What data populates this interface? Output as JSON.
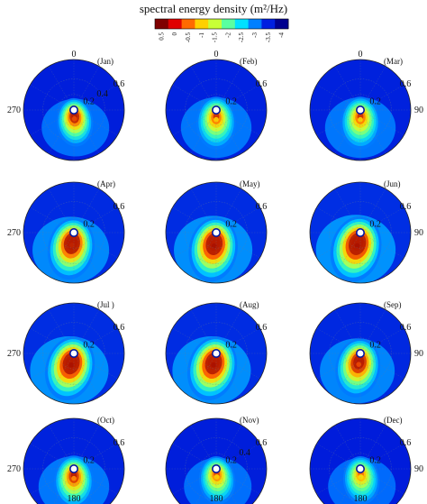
{
  "chart_data": {
    "type": "heatmap",
    "projection": "polar",
    "title": "spectral energy density (m²/Hz)",
    "colorbar": {
      "ticks": [
        "0.5",
        "0",
        "-0.5",
        "-1",
        "-1.5",
        "-2",
        "-2.5",
        "-3",
        "-3.5",
        "-4"
      ],
      "values": [
        0.5,
        0,
        -0.5,
        -1,
        -1.5,
        -2,
        -2.5,
        -3,
        -3.5,
        -4
      ],
      "colors": [
        "#7f0000",
        "#e00000",
        "#ff6a00",
        "#ffd000",
        "#c8ff37",
        "#5affa0",
        "#00e1ff",
        "#0080ff",
        "#0020e0",
        "#00008f"
      ]
    },
    "radial_ticks": [
      "0.2",
      "0.4",
      "0.6"
    ],
    "radial_tick_values": [
      0.2,
      0.4,
      0.6
    ],
    "panels": [
      {
        "month": "(Jan)",
        "angle_labels": {
          "top": "0",
          "left": "270"
        },
        "radial_labels": [
          "0.2",
          "0.4",
          "0.6"
        ],
        "peak_dir_deg": 175,
        "peak_freq": 0.09,
        "peak_strength": 0.85,
        "spread": 0.2,
        "bg_level": 0.1
      },
      {
        "month": "(Feb)",
        "angle_labels": {
          "top": "0"
        },
        "radial_labels": [
          "0.2",
          "0.6"
        ],
        "peak_dir_deg": 180,
        "peak_freq": 0.1,
        "peak_strength": 0.55,
        "spread": 0.25,
        "bg_level": 0.13
      },
      {
        "month": "(Mar)",
        "angle_labels": {
          "top": "0",
          "right": "90"
        },
        "radial_labels": [
          "0.2",
          "0.6"
        ],
        "peak_dir_deg": 180,
        "peak_freq": 0.1,
        "peak_strength": 0.55,
        "spread": 0.25,
        "bg_level": 0.13
      },
      {
        "month": "(Apr)",
        "angle_labels": {
          "left": "270"
        },
        "radial_labels": [
          "0.2",
          "0.6"
        ],
        "peak_dir_deg": 190,
        "peak_freq": 0.14,
        "peak_strength": 0.95,
        "spread": 0.35,
        "bg_level": 0.22
      },
      {
        "month": "(May)",
        "angle_labels": {},
        "radial_labels": [
          "0.2",
          "0.6"
        ],
        "peak_dir_deg": 190,
        "peak_freq": 0.15,
        "peak_strength": 1.0,
        "spread": 0.38,
        "bg_level": 0.24
      },
      {
        "month": "(Jun)",
        "angle_labels": {
          "right": "90"
        },
        "radial_labels": [
          "0.2",
          "0.6"
        ],
        "peak_dir_deg": 195,
        "peak_freq": 0.15,
        "peak_strength": 1.0,
        "spread": 0.4,
        "bg_level": 0.26
      },
      {
        "month": "(Jul )",
        "angle_labels": {
          "left": "270"
        },
        "radial_labels": [
          "0.2",
          "0.6"
        ],
        "peak_dir_deg": 195,
        "peak_freq": 0.13,
        "peak_strength": 1.0,
        "spread": 0.38,
        "bg_level": 0.25
      },
      {
        "month": "(Aug)",
        "angle_labels": {},
        "radial_labels": [
          "0.2",
          "0.6"
        ],
        "peak_dir_deg": 195,
        "peak_freq": 0.13,
        "peak_strength": 1.0,
        "spread": 0.38,
        "bg_level": 0.24
      },
      {
        "month": "(Sep)",
        "angle_labels": {
          "right": "90"
        },
        "radial_labels": [
          "0.2",
          "0.6"
        ],
        "peak_dir_deg": 190,
        "peak_freq": 0.12,
        "peak_strength": 0.85,
        "spread": 0.32,
        "bg_level": 0.2
      },
      {
        "month": "(Oct)",
        "angle_labels": {
          "left": "270",
          "bottom": "180"
        },
        "radial_labels": [
          "0.2",
          "0.6"
        ],
        "peak_dir_deg": 180,
        "peak_freq": 0.1,
        "peak_strength": 0.7,
        "spread": 0.25,
        "bg_level": 0.14
      },
      {
        "month": "(Nov)",
        "angle_labels": {
          "bottom": "180"
        },
        "radial_labels": [
          "0.2",
          "0.4",
          "0.6"
        ],
        "peak_dir_deg": 175,
        "peak_freq": 0.08,
        "peak_strength": 0.55,
        "spread": 0.2,
        "bg_level": 0.1
      },
      {
        "month": "(Dec)",
        "angle_labels": {
          "right": "90",
          "bottom": "180"
        },
        "radial_labels": [
          "0.2",
          "0.6"
        ],
        "peak_dir_deg": 175,
        "peak_freq": 0.08,
        "peak_strength": 0.5,
        "spread": 0.2,
        "bg_level": 0.08
      }
    ]
  }
}
